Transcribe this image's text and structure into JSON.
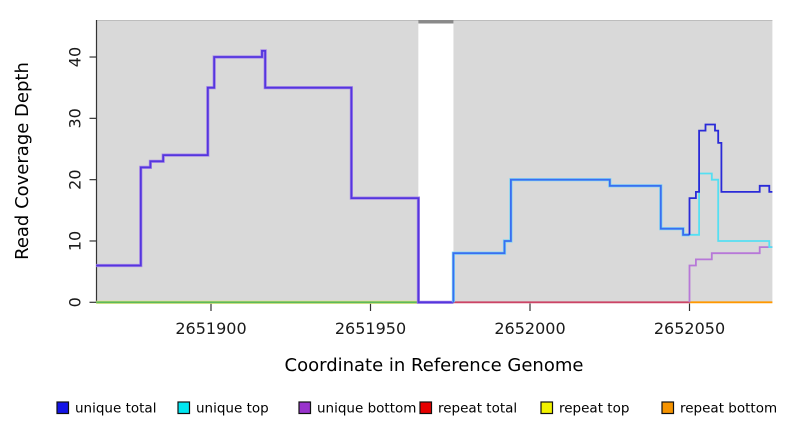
{
  "figure": {
    "xlabel": "Coordinate in Reference Genome",
    "ylabel": "Read Coverage Depth"
  },
  "chart_data": {
    "type": "line",
    "subtype": "step-coverage-depth",
    "title": "",
    "xlabel": "Coordinate in Reference Genome",
    "ylabel": "Read Coverage Depth",
    "xlim": [
      2651864,
      2652076
    ],
    "ylim": [
      0,
      46
    ],
    "x_ticks": [
      2651900,
      2651950,
      2652000,
      2652050
    ],
    "y_ticks": [
      0,
      10,
      20,
      30,
      40
    ],
    "grid": false,
    "plot_background": "#d9d9d9",
    "plot_top_border": "#bdbdbd",
    "gap_region": {
      "x_start": 2651965,
      "x_end": 2651976,
      "fill": "#ffffff",
      "cap_color": "#8a8a8a"
    },
    "step": "after",
    "series": [
      {
        "name": "unique total",
        "color": "#1414e6",
        "points": [
          [
            2651864,
            6
          ],
          [
            2651878,
            22
          ],
          [
            2651881,
            23
          ],
          [
            2651885,
            24
          ],
          [
            2651899,
            35
          ],
          [
            2651901,
            40
          ],
          [
            2651916,
            41
          ],
          [
            2651917,
            35
          ],
          [
            2651944,
            17
          ],
          [
            2651965,
            0
          ],
          [
            2651976,
            8
          ],
          [
            2651992,
            10
          ],
          [
            2651994,
            20
          ],
          [
            2652025,
            19
          ],
          [
            2652041,
            12
          ],
          [
            2652048,
            11
          ],
          [
            2652050,
            17
          ],
          [
            2652052,
            18
          ],
          [
            2652053,
            28
          ],
          [
            2652055,
            29
          ],
          [
            2652058,
            28
          ],
          [
            2652059,
            26
          ],
          [
            2652060,
            18
          ],
          [
            2652072,
            19
          ],
          [
            2652075,
            18
          ],
          [
            2652076,
            18
          ]
        ]
      },
      {
        "name": "unique top",
        "color": "#00e6f0",
        "points": [
          [
            2651864,
            0
          ],
          [
            2651976,
            8
          ],
          [
            2651992,
            10
          ],
          [
            2651994,
            20
          ],
          [
            2652025,
            19
          ],
          [
            2652041,
            12
          ],
          [
            2652048,
            11
          ],
          [
            2652053,
            21
          ],
          [
            2652057,
            20
          ],
          [
            2652059,
            10
          ],
          [
            2652075,
            9
          ],
          [
            2652076,
            9
          ]
        ]
      },
      {
        "name": "unique bottom",
        "color": "#9933cc",
        "points": [
          [
            2651864,
            6
          ],
          [
            2651878,
            22
          ],
          [
            2651881,
            23
          ],
          [
            2651885,
            24
          ],
          [
            2651899,
            35
          ],
          [
            2651901,
            40
          ],
          [
            2651916,
            41
          ],
          [
            2651917,
            35
          ],
          [
            2651944,
            17
          ],
          [
            2651965,
            0
          ],
          [
            2652050,
            6
          ],
          [
            2652052,
            7
          ],
          [
            2652057,
            8
          ],
          [
            2652072,
            9
          ],
          [
            2652076,
            9
          ]
        ]
      },
      {
        "name": "repeat total",
        "color": "#e60000",
        "points": [
          [
            2651864,
            0
          ],
          [
            2652076,
            0
          ]
        ]
      },
      {
        "name": "repeat top",
        "color": "#f2f200",
        "points": [
          [
            2651864,
            0
          ],
          [
            2652076,
            0
          ]
        ]
      },
      {
        "name": "repeat bottom",
        "color": "#f59300",
        "points": [
          [
            2651864,
            0
          ],
          [
            2652076,
            0
          ]
        ]
      }
    ],
    "visible_segments": [
      {
        "name": "zero-line-left",
        "color": "#5cb85c",
        "under_color": "#e8e87a",
        "pts": [
          [
            2651864,
            0
          ],
          [
            2651965,
            0
          ]
        ]
      },
      {
        "name": "zero-line-right-repeat-total",
        "color": "#cc4466",
        "pts": [
          [
            2651976,
            0
          ],
          [
            2652050,
            0
          ]
        ]
      },
      {
        "name": "zero-line-right-repeat-bottom",
        "color": "#ff9800",
        "pts": [
          [
            2652050,
            0
          ],
          [
            2652076,
            0
          ]
        ]
      },
      {
        "name": "unique-bottom-right",
        "color": "#b778d8",
        "pts": [
          [
            2652050,
            0
          ],
          [
            2652050,
            6
          ],
          [
            2652052,
            7
          ],
          [
            2652057,
            8
          ],
          [
            2652072,
            9
          ],
          [
            2652076,
            9
          ]
        ]
      },
      {
        "name": "unique-top-right",
        "color": "#55dff2",
        "pts": [
          [
            2652048,
            11
          ],
          [
            2652053,
            21
          ],
          [
            2652057,
            20
          ],
          [
            2652059,
            10
          ],
          [
            2652075,
            9
          ],
          [
            2652076,
            9
          ]
        ]
      },
      {
        "name": "main-left",
        "color": "#5436de",
        "under_color": "#a98ae8",
        "pts": [
          [
            2651864,
            6
          ],
          [
            2651878,
            22
          ],
          [
            2651881,
            23
          ],
          [
            2651885,
            24
          ],
          [
            2651899,
            35
          ],
          [
            2651901,
            40
          ],
          [
            2651916,
            41
          ],
          [
            2651917,
            35
          ],
          [
            2651944,
            17
          ],
          [
            2651965,
            0
          ],
          [
            2651976,
            0
          ]
        ]
      },
      {
        "name": "main-right-bright",
        "color": "#3a6ef0",
        "under_color": "#7ed4f5",
        "pts": [
          [
            2651976,
            0
          ],
          [
            2651976,
            8
          ],
          [
            2651992,
            10
          ],
          [
            2651994,
            20
          ],
          [
            2652025,
            19
          ],
          [
            2652041,
            12
          ],
          [
            2652048,
            11
          ],
          [
            2652050,
            11
          ]
        ]
      },
      {
        "name": "main-right-dark",
        "color": "#2a2ad8",
        "pts": [
          [
            2652050,
            11
          ],
          [
            2652050,
            17
          ],
          [
            2652052,
            18
          ],
          [
            2652053,
            28
          ],
          [
            2652055,
            29
          ],
          [
            2652058,
            28
          ],
          [
            2652059,
            26
          ],
          [
            2652060,
            18
          ],
          [
            2652072,
            19
          ],
          [
            2652075,
            18
          ],
          [
            2652076,
            18
          ]
        ]
      }
    ],
    "legend": {
      "position": "bottom",
      "entries": [
        {
          "label": "unique total",
          "fill": "#1414e6",
          "border": "#111111"
        },
        {
          "label": "unique top",
          "fill": "#00e6f0",
          "border": "#111111"
        },
        {
          "label": "unique bottom",
          "fill": "#9933cc",
          "border": "#111111"
        },
        {
          "label": "repeat total",
          "fill": "#e60000",
          "border": "#111111"
        },
        {
          "label": "repeat top",
          "fill": "#f2f200",
          "border": "#111111"
        },
        {
          "label": "repeat bottom",
          "fill": "#f59300",
          "border": "#111111"
        }
      ]
    },
    "axis_color": "#333333",
    "tick_label_color": "#1a1a1a"
  }
}
